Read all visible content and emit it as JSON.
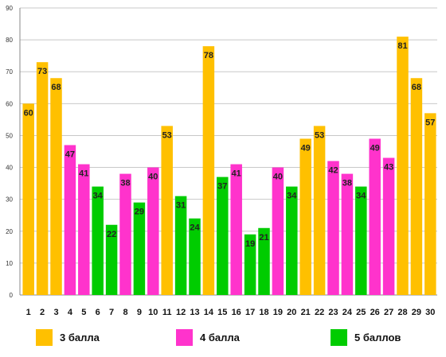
{
  "chart_data": {
    "type": "bar",
    "categories": [
      "1",
      "2",
      "3",
      "4",
      "5",
      "6",
      "7",
      "8",
      "9",
      "10",
      "11",
      "12",
      "13",
      "14",
      "15",
      "16",
      "17",
      "18",
      "19",
      "20",
      "21",
      "22",
      "23",
      "24",
      "25",
      "26",
      "27",
      "28",
      "29",
      "30"
    ],
    "values": [
      60,
      73,
      68,
      47,
      41,
      34,
      22,
      38,
      29,
      40,
      53,
      31,
      24,
      78,
      37,
      41,
      19,
      21,
      40,
      34,
      49,
      53,
      42,
      38,
      34,
      49,
      43,
      81,
      68,
      57
    ],
    "groups": [
      3,
      3,
      3,
      4,
      4,
      5,
      5,
      4,
      5,
      4,
      3,
      5,
      5,
      3,
      5,
      4,
      5,
      5,
      4,
      5,
      3,
      3,
      4,
      4,
      5,
      4,
      4,
      3,
      3,
      3
    ],
    "ylim": [
      0,
      90
    ],
    "yticks": [
      "0",
      "10",
      "20",
      "30",
      "40",
      "50",
      "60",
      "70",
      "80",
      "90"
    ],
    "grid": true,
    "legend_position": "bottom",
    "colors": {
      "3": "#FFC000",
      "4": "#FF33CC",
      "5": "#00CC00"
    }
  },
  "legend": [
    {
      "key": "3",
      "label": "3 балла",
      "color": "#FFC000"
    },
    {
      "key": "4",
      "label": "4 балла",
      "color": "#FF33CC"
    },
    {
      "key": "5",
      "label": "5 баллов",
      "color": "#00CC00"
    }
  ]
}
